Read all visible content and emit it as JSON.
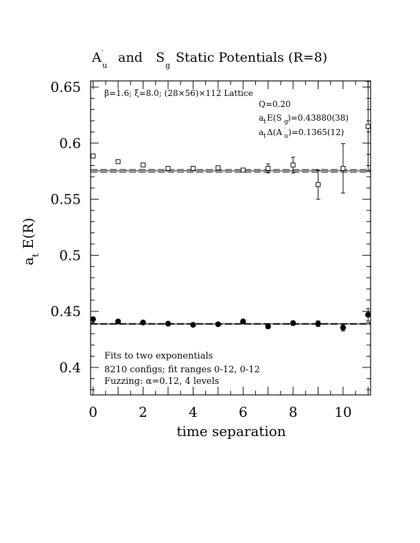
{
  "chart_data": {
    "type": "scatter",
    "title": "A′u  and Sg Static Potentials (R=8)",
    "title_parts": {
      "a_base": "A",
      "a_prime": "′",
      "a_sub": "u",
      "and": "and",
      "s_base": "S",
      "s_sub": "g",
      "rest": "Static Potentials (R=8)"
    },
    "xlabel": "time separation",
    "ylabel_base": "a",
    "ylabel_sub": "t",
    "ylabel_rest": "E(R)",
    "xlim": [
      -0.1,
      11.1
    ],
    "ylim": [
      0.3755,
      0.6555
    ],
    "xticks": [
      0,
      2,
      4,
      6,
      8,
      10
    ],
    "xtick_labels": [
      "0",
      "2",
      "4",
      "6",
      "8",
      "10"
    ],
    "yticks": [
      0.4,
      0.45,
      0.5,
      0.55,
      0.6,
      0.65
    ],
    "ytick_labels": [
      "0.4",
      "0.45",
      "0.5",
      "0.55",
      "0.6",
      "0.65"
    ],
    "annotations": {
      "lattice": "β=1.6; ξ=8.0; (28×56)×112 Lattice",
      "q": "Q=0.20",
      "energy_sg_prefix": "a",
      "energy_sg_sub": "t",
      "energy_sg_mid": "E(S",
      "energy_sg_sub2": "g",
      "energy_sg_val": ")=0.43880(38)",
      "delta_au_prefix": "a",
      "delta_au_sub": "t",
      "delta_au_mid": "Δ(A",
      "delta_au_prime": "′",
      "delta_au_sub2": "u",
      "delta_au_val": ")=0.1365(12)",
      "fits": "Fits to two exponentials",
      "configs": "8210 configs; fit ranges 0-12, 0-12",
      "fuzzing": "Fuzzing: α=0.12, 4 levels"
    },
    "series": [
      {
        "marker": "open-square",
        "color": "#000000",
        "points": [
          {
            "x": 0,
            "y": 0.5885,
            "err": 0.001
          },
          {
            "x": 1,
            "y": 0.5835,
            "err": 0.001
          },
          {
            "x": 2,
            "y": 0.5805,
            "err": 0.001
          },
          {
            "x": 3,
            "y": 0.5775,
            "err": 0.0015
          },
          {
            "x": 4,
            "y": 0.5775,
            "err": 0.001
          },
          {
            "x": 5,
            "y": 0.578,
            "err": 0.0015
          },
          {
            "x": 6,
            "y": 0.576,
            "err": 0.0018
          },
          {
            "x": 7,
            "y": 0.5775,
            "err": 0.004
          },
          {
            "x": 8,
            "y": 0.5805,
            "err": 0.007
          },
          {
            "x": 9,
            "y": 0.563,
            "err": 0.013
          },
          {
            "x": 10,
            "y": 0.5775,
            "err": 0.022
          },
          {
            "x": 11,
            "y": 0.615,
            "err": 0.04
          }
        ],
        "fit": {
          "value": 0.5753,
          "band": [
            0.5741,
            0.5765
          ]
        }
      },
      {
        "marker": "filled-circle",
        "color": "#000000",
        "points": [
          {
            "x": 0,
            "y": 0.443,
            "err": 0.001
          },
          {
            "x": 1,
            "y": 0.441,
            "err": 0.001
          },
          {
            "x": 2,
            "y": 0.44,
            "err": 0.001
          },
          {
            "x": 3,
            "y": 0.439,
            "err": 0.001
          },
          {
            "x": 4,
            "y": 0.438,
            "err": 0.001
          },
          {
            "x": 5,
            "y": 0.4385,
            "err": 0.001
          },
          {
            "x": 6,
            "y": 0.441,
            "err": 0.0012
          },
          {
            "x": 7,
            "y": 0.4365,
            "err": 0.0015
          },
          {
            "x": 8,
            "y": 0.4395,
            "err": 0.002
          },
          {
            "x": 9,
            "y": 0.439,
            "err": 0.0025
          },
          {
            "x": 10,
            "y": 0.4355,
            "err": 0.003
          },
          {
            "x": 11,
            "y": 0.447,
            "err": 0.0055
          }
        ],
        "fit": {
          "value": 0.4388,
          "band": [
            0.43842,
            0.43918
          ]
        }
      }
    ],
    "grid": false,
    "legend": "none"
  }
}
